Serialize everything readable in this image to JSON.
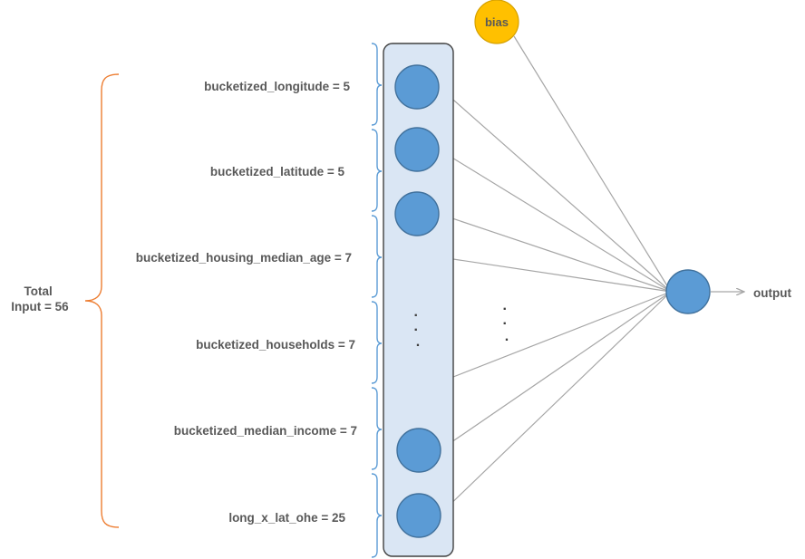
{
  "total_label": {
    "line1": "Total",
    "line2": "Input = 56"
  },
  "features": [
    {
      "label": "bucketized_longitude  = 5"
    },
    {
      "label": "bucketized_latitude  = 5"
    },
    {
      "label": "bucketized_housing_median_age = 7"
    },
    {
      "label": "bucketized_households = 7"
    },
    {
      "label": "bucketized_median_income = 7"
    },
    {
      "label": "long_x_lat_ohe = 25"
    }
  ],
  "ellipsis": {
    "layer": ".\n.\n.",
    "wires": ".\n.\n."
  },
  "bias_label": "bias",
  "output_label": "output",
  "colors": {
    "node": "#5b9bd5",
    "bias": "#ffc000",
    "layer_fill": "#dae6f4",
    "feature_brace": "#5b9bd5",
    "total_brace": "#ed7d31",
    "wire": "#a6a6a6"
  }
}
